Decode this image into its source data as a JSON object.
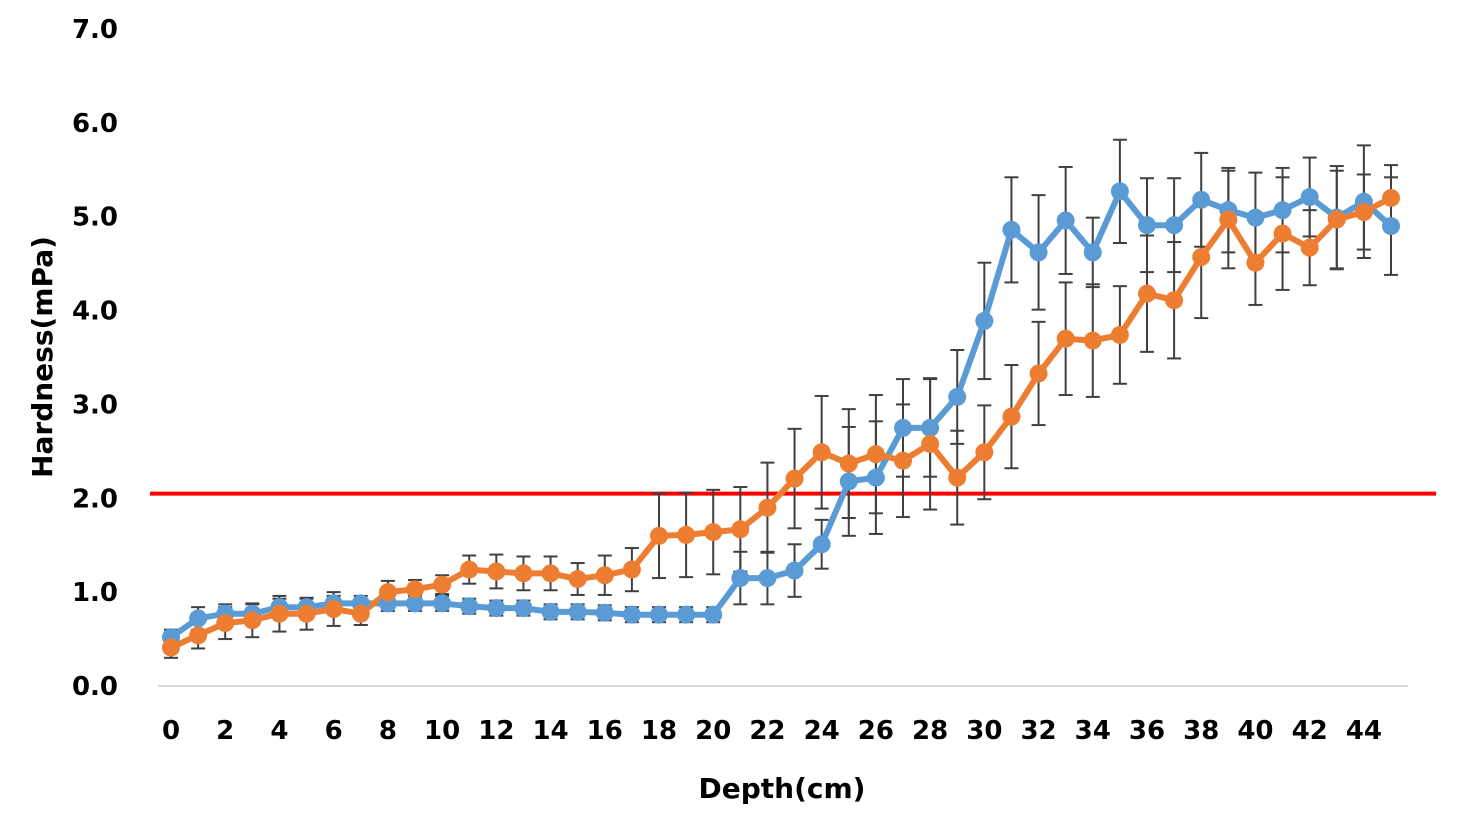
{
  "chart_data": {
    "type": "line",
    "title": "",
    "xlabel": "Depth(cm)",
    "ylabel": "Hardness(mPa)",
    "xlim": [
      0,
      45
    ],
    "ylim": [
      0,
      7
    ],
    "x_ticks": [
      0,
      2,
      4,
      6,
      8,
      10,
      12,
      14,
      16,
      18,
      20,
      22,
      24,
      26,
      28,
      30,
      32,
      34,
      36,
      38,
      40,
      42,
      44
    ],
    "x_tick_labels": [
      "0",
      "2",
      "4",
      "6",
      "8",
      "10",
      "12",
      "14",
      "16",
      "18",
      "20",
      "22",
      "24",
      "26",
      "28",
      "30",
      "32",
      "34",
      "36",
      "38",
      "40",
      "42",
      "44"
    ],
    "y_ticks": [
      0,
      1,
      2,
      3,
      4,
      5,
      6,
      7
    ],
    "y_tick_labels": [
      "0.0",
      "1.0",
      "2.0",
      "3.0",
      "4.0",
      "5.0",
      "6.0",
      "7.0"
    ],
    "grid": false,
    "legend": "none",
    "x": [
      0,
      1,
      2,
      3,
      4,
      5,
      6,
      7,
      8,
      9,
      10,
      11,
      12,
      13,
      14,
      15,
      16,
      17,
      18,
      19,
      20,
      21,
      22,
      23,
      24,
      25,
      26,
      27,
      28,
      29,
      30,
      31,
      32,
      33,
      34,
      35,
      36,
      37,
      38,
      39,
      40,
      41,
      42,
      43,
      44,
      45
    ],
    "series": [
      {
        "color": "#5B9BD5",
        "values": [
          0.52,
          0.72,
          0.77,
          0.77,
          0.84,
          0.84,
          0.88,
          0.88,
          0.88,
          0.88,
          0.88,
          0.85,
          0.83,
          0.83,
          0.79,
          0.79,
          0.78,
          0.76,
          0.76,
          0.76,
          0.76,
          1.15,
          1.15,
          1.23,
          1.51,
          2.18,
          2.22,
          2.75,
          2.75,
          3.08,
          3.89,
          4.86,
          4.62,
          4.96,
          4.62,
          5.27,
          4.91,
          4.91,
          5.18,
          5.07,
          4.99,
          5.07,
          5.21,
          4.99,
          5.16,
          4.9
        ],
        "errors": [
          0.08,
          0.12,
          0.1,
          0.1,
          0.09,
          0.09,
          0.08,
          0.08,
          0.08,
          0.08,
          0.08,
          0.08,
          0.08,
          0.08,
          0.08,
          0.08,
          0.08,
          0.08,
          0.08,
          0.08,
          0.08,
          0.28,
          0.28,
          0.28,
          0.26,
          0.58,
          0.6,
          0.52,
          0.52,
          0.5,
          0.62,
          0.56,
          0.61,
          0.57,
          0.37,
          0.55,
          0.5,
          0.5,
          0.5,
          0.45,
          0.48,
          0.45,
          0.42,
          0.55,
          0.6,
          0.52
        ]
      },
      {
        "color": "#ED7D31",
        "values": [
          0.41,
          0.54,
          0.67,
          0.7,
          0.77,
          0.77,
          0.82,
          0.77,
          1.0,
          1.03,
          1.08,
          1.24,
          1.22,
          1.2,
          1.2,
          1.14,
          1.18,
          1.24,
          1.6,
          1.61,
          1.64,
          1.67,
          1.9,
          2.21,
          2.49,
          2.37,
          2.47,
          2.4,
          2.58,
          2.22,
          2.49,
          2.87,
          3.33,
          3.7,
          3.68,
          3.74,
          4.18,
          4.11,
          4.57,
          4.97,
          4.51,
          4.82,
          4.67,
          4.97,
          5.05,
          5.2
        ],
        "errors": [
          0.11,
          0.14,
          0.17,
          0.18,
          0.19,
          0.17,
          0.18,
          0.12,
          0.12,
          0.1,
          0.1,
          0.15,
          0.18,
          0.18,
          0.18,
          0.17,
          0.21,
          0.23,
          0.45,
          0.45,
          0.45,
          0.45,
          0.48,
          0.53,
          0.6,
          0.58,
          0.63,
          0.6,
          0.7,
          0.5,
          0.5,
          0.55,
          0.55,
          0.6,
          0.6,
          0.52,
          0.62,
          0.62,
          0.65,
          0.52,
          0.45,
          0.6,
          0.4,
          0.52,
          0.4,
          0.35
        ]
      }
    ],
    "reference_line": {
      "y": 2.05,
      "color": "#FF0000"
    },
    "error_bar_color": "#404040",
    "axis_color": "#D9D9D9"
  }
}
